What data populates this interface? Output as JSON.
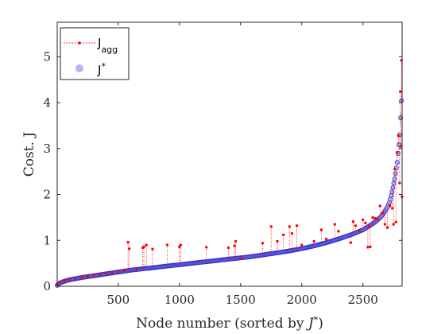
{
  "chart_data": {
    "type": "scatter",
    "xlabel_main": "Node number (sorted by ",
    "xlabel_sym": "J",
    "xlabel_sup": "*",
    "xlabel_end": ")",
    "ylabel": "Cost. J",
    "xlim": [
      1,
      2820
    ],
    "ylim": [
      0,
      5.75
    ],
    "xticks": [
      500,
      1000,
      1500,
      2000,
      2500
    ],
    "yticks": [
      0,
      1,
      2,
      3,
      4,
      5
    ],
    "grid": false,
    "legend_position": "top-left",
    "colors": {
      "j_agg": "#ff0000",
      "j_star": "#3333cc",
      "j_star_fill": "#b3b3ff",
      "axis": "#262626"
    },
    "series": [
      {
        "name": "J",
        "name_sub": "agg",
        "marker": "red-dots-dotted-line",
        "x": [
          1,
          20,
          60,
          100,
          150,
          200,
          250,
          300,
          350,
          400,
          450,
          500,
          550,
          580,
          590,
          650,
          700,
          710,
          730,
          780,
          900,
          1000,
          1010,
          1220,
          1400,
          1450,
          1460,
          1500,
          1680,
          1750,
          1800,
          1850,
          1900,
          1920,
          1960,
          2000,
          2100,
          2160,
          2200,
          2270,
          2300,
          2400,
          2420,
          2440,
          2470,
          2500,
          2520,
          2540,
          2550,
          2560,
          2580,
          2600,
          2620,
          2640,
          2660,
          2680,
          2700,
          2720,
          2740,
          2750,
          2760,
          2770,
          2780,
          2790,
          2800,
          2805,
          2810,
          2815,
          2820
        ],
        "y": [
          0.03,
          0.08,
          0.12,
          0.14,
          0.17,
          0.2,
          0.22,
          0.24,
          0.26,
          0.28,
          0.3,
          0.32,
          0.34,
          0.96,
          0.82,
          0.37,
          0.84,
          0.86,
          0.9,
          0.81,
          0.9,
          0.86,
          0.9,
          0.85,
          0.84,
          0.88,
          0.98,
          0.64,
          0.94,
          1.3,
          0.98,
          1.12,
          1.3,
          1.15,
          1.32,
          0.9,
          0.98,
          1.23,
          1.03,
          1.35,
          1.2,
          0.95,
          1.41,
          1.32,
          1.21,
          1.45,
          1.38,
          0.85,
          1.32,
          0.86,
          1.5,
          1.48,
          1.45,
          1.75,
          1.6,
          1.35,
          1.28,
          1.75,
          1.7,
          1.35,
          2.55,
          1.4,
          2.92,
          3.28,
          2.25,
          4.24,
          3.05,
          4.92,
          1.95
        ]
      },
      {
        "name": "J",
        "name_sup": "*",
        "marker": "blue-circle",
        "x": [
          1,
          20,
          60,
          100,
          200,
          300,
          400,
          500,
          600,
          700,
          800,
          900,
          1000,
          1100,
          1200,
          1300,
          1400,
          1500,
          1600,
          1700,
          1800,
          1900,
          2000,
          2100,
          2200,
          2300,
          2400,
          2500,
          2550,
          2600,
          2650,
          2700,
          2720,
          2740,
          2760,
          2780,
          2800,
          2820
        ],
        "y": [
          0.02,
          0.07,
          0.11,
          0.14,
          0.19,
          0.23,
          0.27,
          0.31,
          0.35,
          0.38,
          0.41,
          0.44,
          0.47,
          0.5,
          0.53,
          0.56,
          0.59,
          0.62,
          0.65,
          0.69,
          0.73,
          0.77,
          0.82,
          0.88,
          0.95,
          1.03,
          1.12,
          1.23,
          1.31,
          1.4,
          1.52,
          1.72,
          1.85,
          2.08,
          2.35,
          2.7,
          3.25,
          4.3
        ]
      }
    ]
  }
}
